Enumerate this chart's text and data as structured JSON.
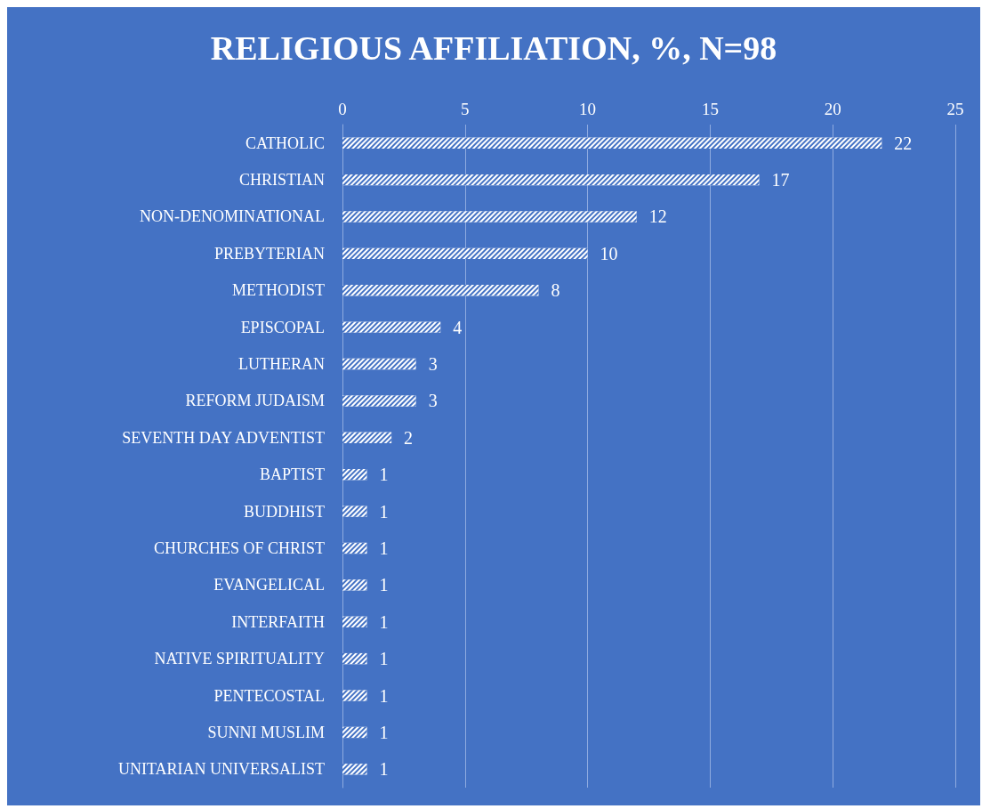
{
  "chart_data": {
    "type": "bar",
    "orientation": "horizontal",
    "title": "RELIGIOUS AFFILIATION, %, N=98",
    "categories": [
      "CATHOLIC",
      "CHRISTIAN",
      "NON-DENOMINATIONAL",
      "PREBYTERIAN",
      "METHODIST",
      "EPISCOPAL",
      "LUTHERAN",
      "REFORM JUDAISM",
      "SEVENTH DAY ADVENTIST",
      "BAPTIST",
      "BUDDHIST",
      "CHURCHES OF CHRIST",
      "EVANGELICAL",
      "INTERFAITH",
      "NATIVE SPIRITUALITY",
      "PENTECOSTAL",
      "SUNNI MUSLIM",
      "UNITARIAN UNIVERSALIST"
    ],
    "values": [
      22,
      17,
      12,
      10,
      8,
      4,
      3,
      3,
      2,
      1,
      1,
      1,
      1,
      1,
      1,
      1,
      1,
      1
    ],
    "color": "#ffffff",
    "xlim": [
      0,
      25
    ],
    "xticks": [
      0,
      5,
      10,
      15,
      20,
      25
    ],
    "grid": "x",
    "data_labels": true
  }
}
